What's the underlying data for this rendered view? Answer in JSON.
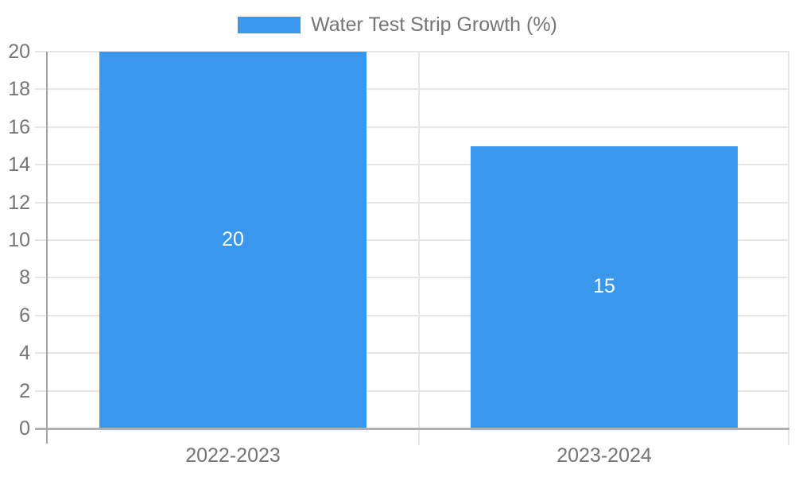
{
  "chart_data": {
    "type": "bar",
    "title": "Water Test Strip Growth (%)",
    "categories": [
      "2022-2023",
      "2023-2024"
    ],
    "series": [
      {
        "name": "Water Test Strip Growth (%)",
        "values": [
          20,
          15
        ]
      }
    ],
    "value_labels": [
      "20",
      "15"
    ],
    "xlabel": "",
    "ylabel": "",
    "ylim": [
      0,
      20
    ],
    "ytick_step": 2,
    "yticks": [
      0,
      2,
      4,
      6,
      8,
      10,
      12,
      14,
      16,
      18,
      20
    ],
    "grid": true,
    "legend_position": "top-center",
    "colors": {
      "bar": "#3998eb",
      "axis_text": "#757575",
      "gridline": "#e6e6e6",
      "axis_line": "#a6a6a6",
      "baseline": "#b0b0b0",
      "value_label": "#ffffff",
      "background": "#ffffff"
    }
  }
}
